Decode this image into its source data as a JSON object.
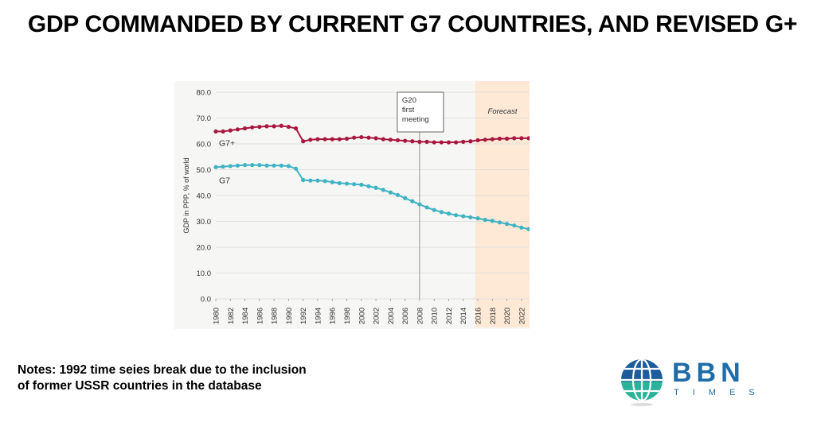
{
  "page": {
    "title": "GDP COMMANDED BY CURRENT G7 COUNTRIES, AND REVISED G+",
    "notes": [
      "Notes: 1992 time seies break due to the inclusion",
      "of former USSR countries in the database"
    ]
  },
  "logo": {
    "brand": "BBN",
    "subtitle": "TIMES",
    "colors": {
      "globe_top": "#1d5c9a",
      "globe_bottom": "#2ab39a",
      "text": "#1e6ca8"
    }
  },
  "chart_data": {
    "type": "line",
    "title": "",
    "xlabel": "",
    "ylabel": "GDP in PPP, % of world",
    "ylim": [
      0,
      80
    ],
    "xlim": [
      1980,
      2023
    ],
    "y_ticks": [
      "0.0",
      "10.0",
      "20.0",
      "30.0",
      "40.0",
      "50.0",
      "60.0",
      "70.0",
      "80.0"
    ],
    "x_ticks": [
      "1980",
      "1982",
      "1984",
      "1986",
      "1988",
      "1990",
      "1992",
      "1994",
      "1996",
      "1998",
      "2000",
      "2002",
      "2004",
      "2006",
      "2008",
      "2010",
      "2012",
      "2014",
      "2016",
      "2018",
      "2020",
      "2022"
    ],
    "x": [
      1980,
      1981,
      1982,
      1983,
      1984,
      1985,
      1986,
      1987,
      1988,
      1989,
      1990,
      1991,
      1992,
      1993,
      1994,
      1995,
      1996,
      1997,
      1998,
      1999,
      2000,
      2001,
      2002,
      2003,
      2004,
      2005,
      2006,
      2007,
      2008,
      2009,
      2010,
      2011,
      2012,
      2013,
      2014,
      2015,
      2016,
      2017,
      2018,
      2019,
      2020,
      2021,
      2022,
      2023
    ],
    "series": [
      {
        "name": "G7+",
        "color": "#a8173f",
        "values": [
          64.8,
          64.8,
          65.2,
          65.6,
          66.0,
          66.4,
          66.6,
          66.8,
          66.8,
          67.0,
          66.6,
          66.0,
          61.0,
          61.6,
          61.8,
          61.8,
          61.8,
          61.8,
          62.0,
          62.4,
          62.6,
          62.4,
          62.2,
          61.8,
          61.6,
          61.4,
          61.2,
          61.0,
          60.8,
          60.8,
          60.6,
          60.6,
          60.6,
          60.6,
          60.8,
          61.0,
          61.4,
          61.6,
          61.8,
          62.0,
          62.0,
          62.2,
          62.2,
          62.2
        ]
      },
      {
        "name": "G7",
        "color": "#3fb3c4",
        "values": [
          51.0,
          51.2,
          51.4,
          51.6,
          51.8,
          51.8,
          51.8,
          51.6,
          51.6,
          51.6,
          51.4,
          50.4,
          46.0,
          45.8,
          45.8,
          45.6,
          45.2,
          44.8,
          44.6,
          44.4,
          44.2,
          43.6,
          43.0,
          42.2,
          41.2,
          40.2,
          39.0,
          37.8,
          36.6,
          35.4,
          34.4,
          33.6,
          33.0,
          32.4,
          32.0,
          31.6,
          31.2,
          30.6,
          30.2,
          29.6,
          29.0,
          28.4,
          27.6,
          27.0
        ]
      }
    ],
    "annotations": [
      {
        "type": "vline",
        "x": 2008,
        "label": [
          "G20",
          "first",
          "meeting"
        ]
      },
      {
        "type": "shaded_region",
        "x_start": 2016,
        "x_end": 2023,
        "label": "Forecast",
        "color": "#fde9d6"
      }
    ],
    "grid": true,
    "legend": "inline labels near series start"
  }
}
